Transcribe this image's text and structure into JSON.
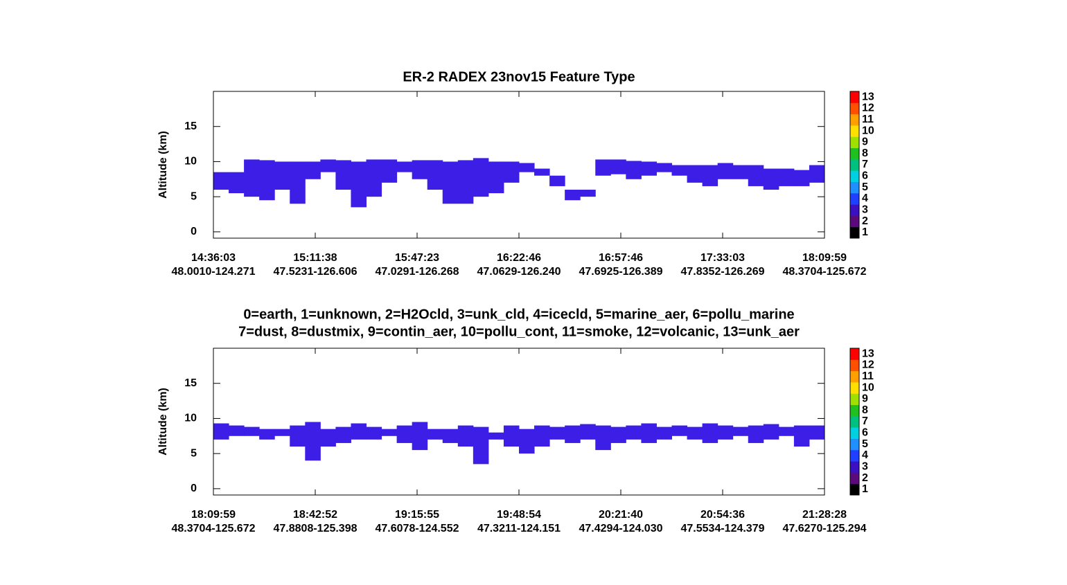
{
  "chart_data": [
    {
      "type": "curtain",
      "title": "ER-2 RADEX  23nov15  Feature Type",
      "ylabel": "Altitude (km)",
      "ylim": [
        -0.9,
        20
      ],
      "yticks": [
        0,
        5,
        10,
        15
      ],
      "color": "#3c1ee6",
      "top": [
        8.5,
        8.5,
        10.3,
        10.2,
        10,
        10,
        10,
        10.3,
        10.2,
        10,
        10.3,
        10.3,
        10,
        10.2,
        10.2,
        10,
        10.2,
        10.5,
        10,
        10,
        9.8,
        9,
        8,
        6,
        6,
        10.3,
        10.3,
        10.1,
        10,
        9.8,
        9.5,
        9.5,
        9.5,
        9.8,
        9.5,
        9.5,
        9,
        9,
        8.8,
        9.5
      ],
      "base": [
        6,
        5.5,
        5,
        4.5,
        6,
        4,
        7.5,
        8.5,
        6,
        3.5,
        5,
        7,
        8.5,
        7.5,
        6,
        4,
        4,
        5,
        5.5,
        7,
        8.5,
        8,
        6.5,
        4.5,
        5,
        8,
        8.2,
        7.5,
        8,
        8.5,
        8,
        7,
        6.5,
        7.5,
        7.5,
        6.5,
        6,
        6.5,
        6.5,
        7
      ],
      "xticks": [
        {
          "time": "14:36:03",
          "location": "48.0010-124.271"
        },
        {
          "time": "15:11:38",
          "location": "47.5231-126.606"
        },
        {
          "time": "15:47:23",
          "location": "47.0291-126.268"
        },
        {
          "time": "16:22:46",
          "location": "47.0629-126.240"
        },
        {
          "time": "16:57:46",
          "location": "47.6925-126.389"
        },
        {
          "time": "17:33:03",
          "location": "47.8352-126.269"
        },
        {
          "time": "18:09:59",
          "location": "48.3704-125.672"
        }
      ],
      "colorbar": {
        "ticks": [
          1,
          2,
          3,
          4,
          5,
          6,
          7,
          8,
          9,
          10,
          11,
          12,
          13
        ],
        "colors": [
          "#000000",
          "#5a0a7a",
          "#3a10c0",
          "#2040ff",
          "#2090ff",
          "#00d0e0",
          "#00c080",
          "#20c020",
          "#a0e000",
          "#ffe000",
          "#ffa000",
          "#ff5000",
          "#ff0000"
        ]
      }
    },
    {
      "type": "curtain",
      "title_lines": [
        "0=earth, 1=unknown, 2=H2Ocld, 3=unk_cld, 4=icecld, 5=marine_aer, 6=pollu_marine",
        "7=dust, 8=dustmix, 9=contin_aer, 10=pollu_cont, 11=smoke, 12=volcanic, 13=unk_aer"
      ],
      "ylabel": "Altitude (km)",
      "ylim": [
        -0.9,
        20
      ],
      "yticks": [
        0,
        5,
        10,
        15
      ],
      "color": "#3c1ee6",
      "top": [
        9.3,
        9,
        8.8,
        8.5,
        8.5,
        9,
        9.5,
        8.5,
        8.8,
        9.3,
        8.8,
        8.5,
        9,
        9.5,
        8.5,
        8.5,
        9,
        8.8,
        8,
        9,
        8.5,
        9,
        8.8,
        9,
        9.2,
        9,
        8.8,
        9,
        9.3,
        8.8,
        9,
        8.8,
        9.3,
        9,
        8.8,
        9,
        9.2,
        8.8,
        9,
        9
      ],
      "base": [
        7,
        7.5,
        7.5,
        7,
        7.5,
        6,
        4,
        6,
        6.5,
        7,
        7,
        7.5,
        6.5,
        5.5,
        7,
        6.5,
        6,
        3.5,
        7,
        6,
        5,
        6,
        7,
        6.5,
        7,
        5.5,
        6.5,
        7,
        6.5,
        7,
        7.5,
        7,
        6.5,
        7,
        7.5,
        6.5,
        7,
        7.5,
        6,
        7
      ],
      "xticks": [
        {
          "time": "18:09:59",
          "location": "48.3704-125.672"
        },
        {
          "time": "18:42:52",
          "location": "47.8808-125.398"
        },
        {
          "time": "19:15:55",
          "location": "47.6078-124.552"
        },
        {
          "time": "19:48:54",
          "location": "47.3211-124.151"
        },
        {
          "time": "20:21:40",
          "location": "47.4294-124.030"
        },
        {
          "time": "20:54:36",
          "location": "47.5534-124.379"
        },
        {
          "time": "21:28:28",
          "location": "47.6270-125.294"
        }
      ],
      "colorbar": {
        "ticks": [
          1,
          2,
          3,
          4,
          5,
          6,
          7,
          8,
          9,
          10,
          11,
          12,
          13
        ],
        "colors": [
          "#000000",
          "#5a0a7a",
          "#3a10c0",
          "#2040ff",
          "#2090ff",
          "#00d0e0",
          "#00c080",
          "#20c020",
          "#a0e000",
          "#ffe000",
          "#ffa000",
          "#ff5000",
          "#ff0000"
        ]
      }
    }
  ]
}
